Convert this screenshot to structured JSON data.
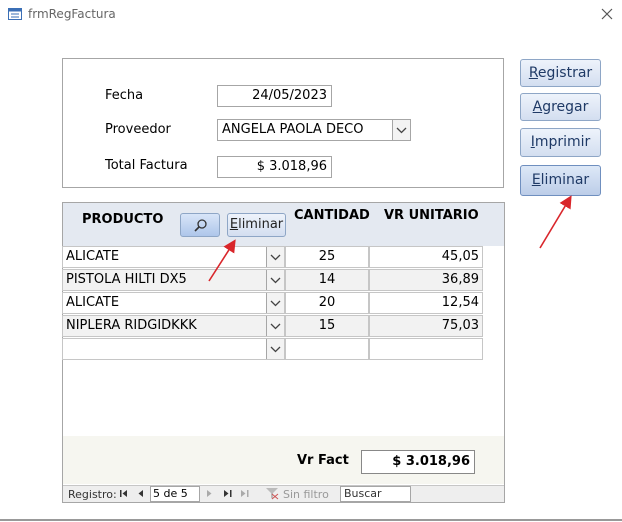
{
  "window": {
    "title": "frmRegFactura"
  },
  "header": {
    "fecha": {
      "label": "Fecha",
      "value": "24/05/2023"
    },
    "proveedor": {
      "label": "Proveedor",
      "value": "ANGELA PAOLA DECO"
    },
    "total": {
      "label": "Total Factura",
      "value": "$ 3.018,96"
    }
  },
  "buttons": [
    "Registrar",
    "Agregar",
    "Imprimir",
    "Eliminar"
  ],
  "detail": {
    "columns": [
      "PRODUCTO",
      "CANTIDAD",
      "VR UNITARIO"
    ],
    "delete_button": "Eliminar",
    "rows": [
      [
        "ALICATE",
        25,
        "45,05"
      ],
      [
        "PISTOLA HILTI DX5",
        14,
        "36,89"
      ],
      [
        "ALICATE",
        20,
        "12,54"
      ],
      [
        "NIPLERA RIDGIDKKK",
        15,
        "75,03"
      ]
    ],
    "footer": {
      "label": "Vr Fact",
      "value": "$ 3.018,96"
    }
  },
  "navigation": {
    "label": "Registro:",
    "position": "5 de 5",
    "filter": "Sin filtro",
    "search": "Buscar"
  }
}
